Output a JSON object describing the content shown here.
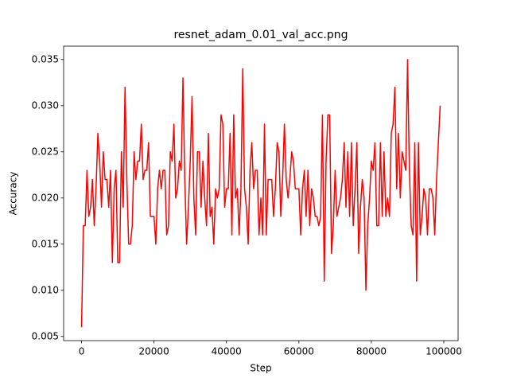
{
  "chart_data": {
    "type": "line",
    "title": "resnet_adam_0.01_val_acc.png",
    "x_label": "Step",
    "y_label": "Accuracy",
    "x": [
      0,
      500,
      1000,
      1500,
      2000,
      2500,
      3000,
      3500,
      4000,
      4500,
      5000,
      5500,
      6000,
      6500,
      7000,
      7500,
      8000,
      8500,
      9000,
      9500,
      10000,
      10500,
      11000,
      11500,
      12000,
      12500,
      13000,
      13500,
      14000,
      14500,
      15000,
      15500,
      16000,
      16500,
      17000,
      17500,
      18000,
      18500,
      19000,
      19500,
      20000,
      20500,
      21000,
      21500,
      22000,
      22500,
      23000,
      23500,
      24000,
      24500,
      25000,
      25500,
      26000,
      26500,
      27000,
      27500,
      28000,
      28500,
      29000,
      29500,
      30000,
      30500,
      31000,
      31500,
      32000,
      32500,
      33000,
      33500,
      34000,
      34500,
      35000,
      35500,
      36000,
      36500,
      37000,
      37500,
      38000,
      38500,
      39000,
      39500,
      40000,
      40500,
      41000,
      41500,
      42000,
      42500,
      43000,
      43500,
      44000,
      44500,
      45000,
      45500,
      46000,
      46500,
      47000,
      47500,
      48000,
      48500,
      49000,
      49500,
      50000,
      50500,
      51000,
      51500,
      52000,
      52500,
      53000,
      53500,
      54000,
      54500,
      55000,
      55500,
      56000,
      56500,
      57000,
      57500,
      58000,
      58500,
      59000,
      59500,
      60000,
      60500,
      61000,
      61500,
      62000,
      62500,
      63000,
      63500,
      64000,
      64500,
      65000,
      65500,
      66000,
      66500,
      67000,
      67500,
      68000,
      68500,
      69000,
      69500,
      70000,
      70500,
      71000,
      71500,
      72000,
      72500,
      73000,
      73500,
      74000,
      74500,
      75000,
      75500,
      76000,
      76500,
      77000,
      77500,
      78000,
      78500,
      79000,
      79500,
      80000,
      80500,
      81000,
      81500,
      82000,
      82500,
      83000,
      83500,
      84000,
      84500,
      85000,
      85500,
      86000,
      86500,
      87000,
      87500,
      88000,
      88500,
      89000,
      89500,
      90000,
      90500,
      91000,
      91500,
      92000,
      92500,
      93000,
      93500,
      94000,
      94500,
      95000,
      95500,
      96000,
      96500,
      97000,
      97500,
      98000,
      98500,
      99000
    ],
    "series": [
      {
        "color": "#ff0000",
        "values": [
          0.006,
          0.017,
          0.017,
          0.023,
          0.018,
          0.019,
          0.022,
          0.017,
          0.021,
          0.027,
          0.024,
          0.019,
          0.025,
          0.022,
          0.022,
          0.019,
          0.023,
          0.013,
          0.021,
          0.023,
          0.013,
          0.013,
          0.025,
          0.019,
          0.032,
          0.022,
          0.015,
          0.015,
          0.017,
          0.025,
          0.022,
          0.024,
          0.024,
          0.028,
          0.022,
          0.023,
          0.023,
          0.026,
          0.018,
          0.018,
          0.018,
          0.015,
          0.021,
          0.023,
          0.021,
          0.023,
          0.023,
          0.016,
          0.017,
          0.025,
          0.024,
          0.028,
          0.02,
          0.021,
          0.024,
          0.023,
          0.033,
          0.022,
          0.015,
          0.019,
          0.024,
          0.031,
          0.02,
          0.016,
          0.025,
          0.025,
          0.019,
          0.024,
          0.02,
          0.017,
          0.027,
          0.018,
          0.019,
          0.015,
          0.021,
          0.02,
          0.021,
          0.029,
          0.028,
          0.019,
          0.021,
          0.021,
          0.027,
          0.016,
          0.029,
          0.02,
          0.021,
          0.016,
          0.021,
          0.034,
          0.021,
          0.019,
          0.015,
          0.023,
          0.026,
          0.021,
          0.023,
          0.023,
          0.016,
          0.02,
          0.016,
          0.028,
          0.016,
          0.022,
          0.022,
          0.022,
          0.018,
          0.021,
          0.026,
          0.025,
          0.018,
          0.022,
          0.028,
          0.022,
          0.02,
          0.022,
          0.025,
          0.024,
          0.021,
          0.021,
          0.021,
          0.016,
          0.021,
          0.023,
          0.018,
          0.023,
          0.017,
          0.021,
          0.02,
          0.018,
          0.018,
          0.017,
          0.018,
          0.029,
          0.011,
          0.024,
          0.029,
          0.029,
          0.014,
          0.017,
          0.023,
          0.018,
          0.019,
          0.02,
          0.022,
          0.026,
          0.019,
          0.025,
          0.018,
          0.026,
          0.017,
          0.021,
          0.026,
          0.014,
          0.019,
          0.022,
          0.02,
          0.01,
          0.017,
          0.02,
          0.024,
          0.023,
          0.026,
          0.017,
          0.017,
          0.026,
          0.018,
          0.025,
          0.018,
          0.02,
          0.018,
          0.027,
          0.028,
          0.032,
          0.021,
          0.027,
          0.02,
          0.025,
          0.024,
          0.023,
          0.035,
          0.023,
          0.017,
          0.016,
          0.026,
          0.011,
          0.026,
          0.016,
          0.018,
          0.021,
          0.02,
          0.016,
          0.021,
          0.021,
          0.02,
          0.016,
          0.022,
          0.026,
          0.03
        ]
      }
    ],
    "xlim": [
      -4950,
      103950
    ],
    "ylim": [
      0.00455,
      0.03645
    ],
    "xticks": [
      0,
      20000,
      40000,
      60000,
      80000,
      100000
    ],
    "yticks": [
      0.005,
      {
        "value": 0.01,
        "label": "0.010"
      },
      0.015,
      {
        "value": 0.02,
        "label": "0.020"
      },
      0.025,
      {
        "value": 0.03,
        "label": "0.030"
      },
      0.035
    ],
    "grid": false
  }
}
